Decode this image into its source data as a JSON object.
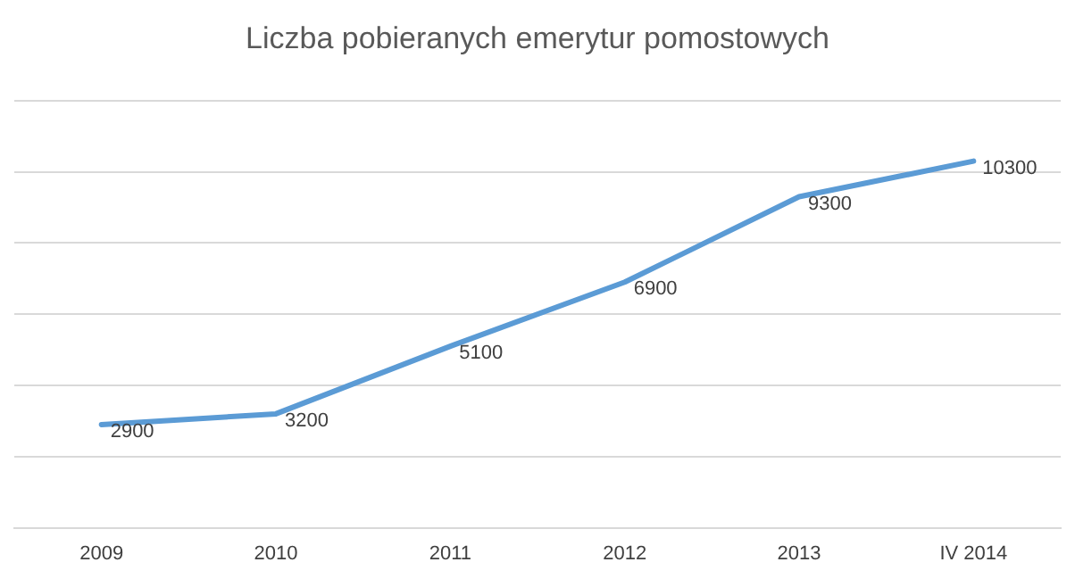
{
  "chart_data": {
    "type": "line",
    "title": "Liczba pobieranych emerytur pomostowych",
    "categories": [
      "2009",
      "2010",
      "2011",
      "2012",
      "2013",
      "IV 2014"
    ],
    "series": [
      {
        "color": "#5b9bd5",
        "values": [
          2900,
          3200,
          5100,
          6900,
          9300,
          10300
        ]
      }
    ],
    "ylim": [
      0,
      12000
    ],
    "yticks": [
      {
        "value": 0,
        "label": null
      },
      {
        "value": 2000,
        "label": null
      },
      {
        "value": 4000,
        "label": null
      },
      {
        "value": 6000,
        "label": null
      },
      {
        "value": 8000,
        "label": null
      },
      {
        "value": 10000,
        "label": null
      },
      {
        "value": 12000,
        "label": null
      }
    ],
    "grid": "y",
    "legend": false,
    "tick_labels": "x",
    "marker": "none",
    "line_style": "solid",
    "data_labels": true
  }
}
